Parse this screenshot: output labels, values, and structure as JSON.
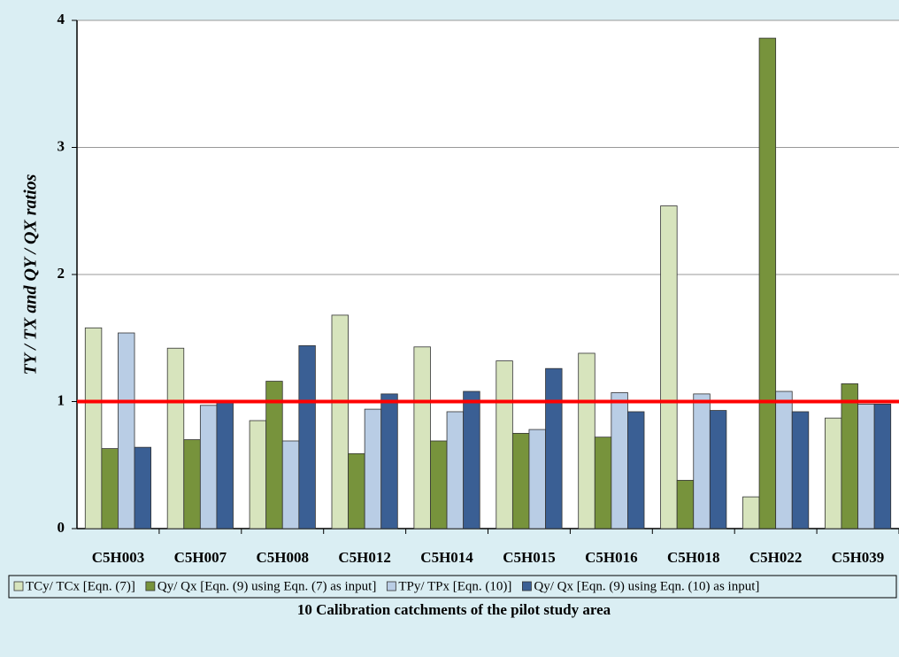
{
  "chart_data": {
    "type": "bar",
    "y_label": "TY / TX  and  QY / QX ratios",
    "x_label": "10 Calibration catchments of the pilot study area",
    "categories": [
      "C5H003",
      "C5H007",
      "C5H008",
      "C5H012",
      "C5H014",
      "C5H015",
      "C5H016",
      "C5H018",
      "C5H022",
      "C5H039"
    ],
    "series": [
      {
        "name": "TCy/ TCx [Eqn. (7)]",
        "color": "#d7e4bd",
        "values": [
          1.58,
          1.42,
          0.85,
          1.68,
          1.43,
          1.32,
          1.38,
          2.54,
          0.25,
          0.87
        ]
      },
      {
        "name": "Qy/ Qx [Eqn. (9) using Eqn. (7) as input]",
        "color": "#77933c",
        "values": [
          0.63,
          0.7,
          1.16,
          0.59,
          0.69,
          0.75,
          0.72,
          0.38,
          3.86,
          1.14
        ]
      },
      {
        "name": "TPy/ TPx [Eqn. (10)]",
        "color": "#b9cde5",
        "values": [
          1.54,
          0.97,
          0.69,
          0.94,
          0.92,
          0.78,
          1.07,
          1.06,
          1.08,
          0.98
        ]
      },
      {
        "name": "Qy/ Qx [Eqn. (9) using Eqn. (10) as input]",
        "color": "#3a5f94",
        "values": [
          0.64,
          1.01,
          1.44,
          1.06,
          1.08,
          1.26,
          0.92,
          0.93,
          0.92,
          0.98
        ]
      }
    ],
    "ylim": [
      0,
      4
    ],
    "yticks": [
      0,
      1,
      2,
      3,
      4
    ],
    "grid": true,
    "reference_line": {
      "value": 1,
      "color": "#ff0000"
    },
    "legend": "bottom"
  }
}
